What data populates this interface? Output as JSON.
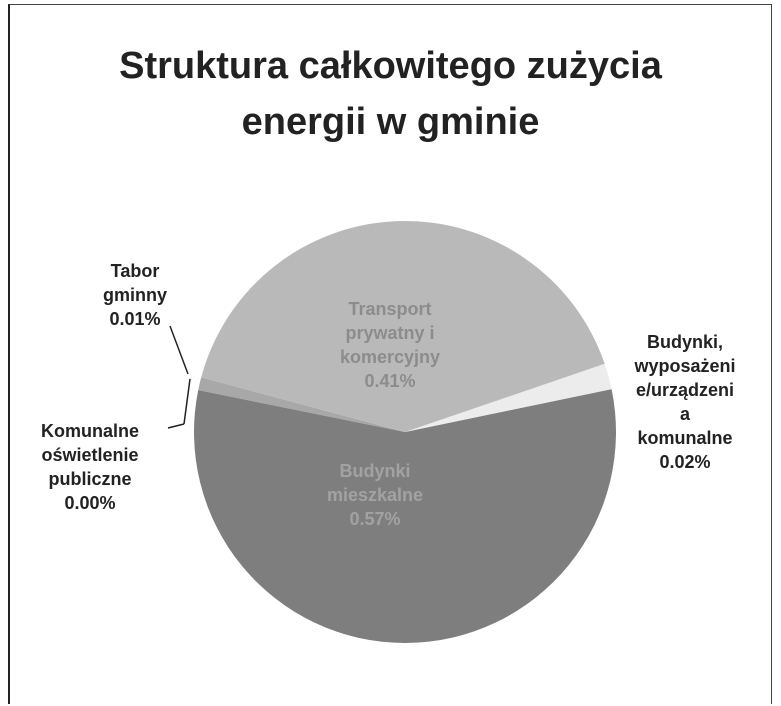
{
  "chart_data": {
    "type": "pie",
    "title": "Struktura  całkowitego zużycia\nenergii w gminie",
    "categories": [
      "Transport\nprywatny i\nkomercyjny",
      "Budynki,\nwyposażeni\ne/urządzeni\na\nkomunalne",
      "Budynki\nmieszkalne",
      "Komunalne\noświetlenie\npubliczne",
      "Tabor\ngminny"
    ],
    "values": [
      0.41,
      0.02,
      0.57,
      0.0,
      0.01
    ],
    "value_labels": [
      "0.41%",
      "0.02%",
      "0.57%",
      "0.00%",
      "0.01%"
    ],
    "colors": [
      "#b9b9b9",
      "#ececec",
      "#7e7e7e",
      "#4a4a4a",
      "#a8a8a8"
    ]
  }
}
